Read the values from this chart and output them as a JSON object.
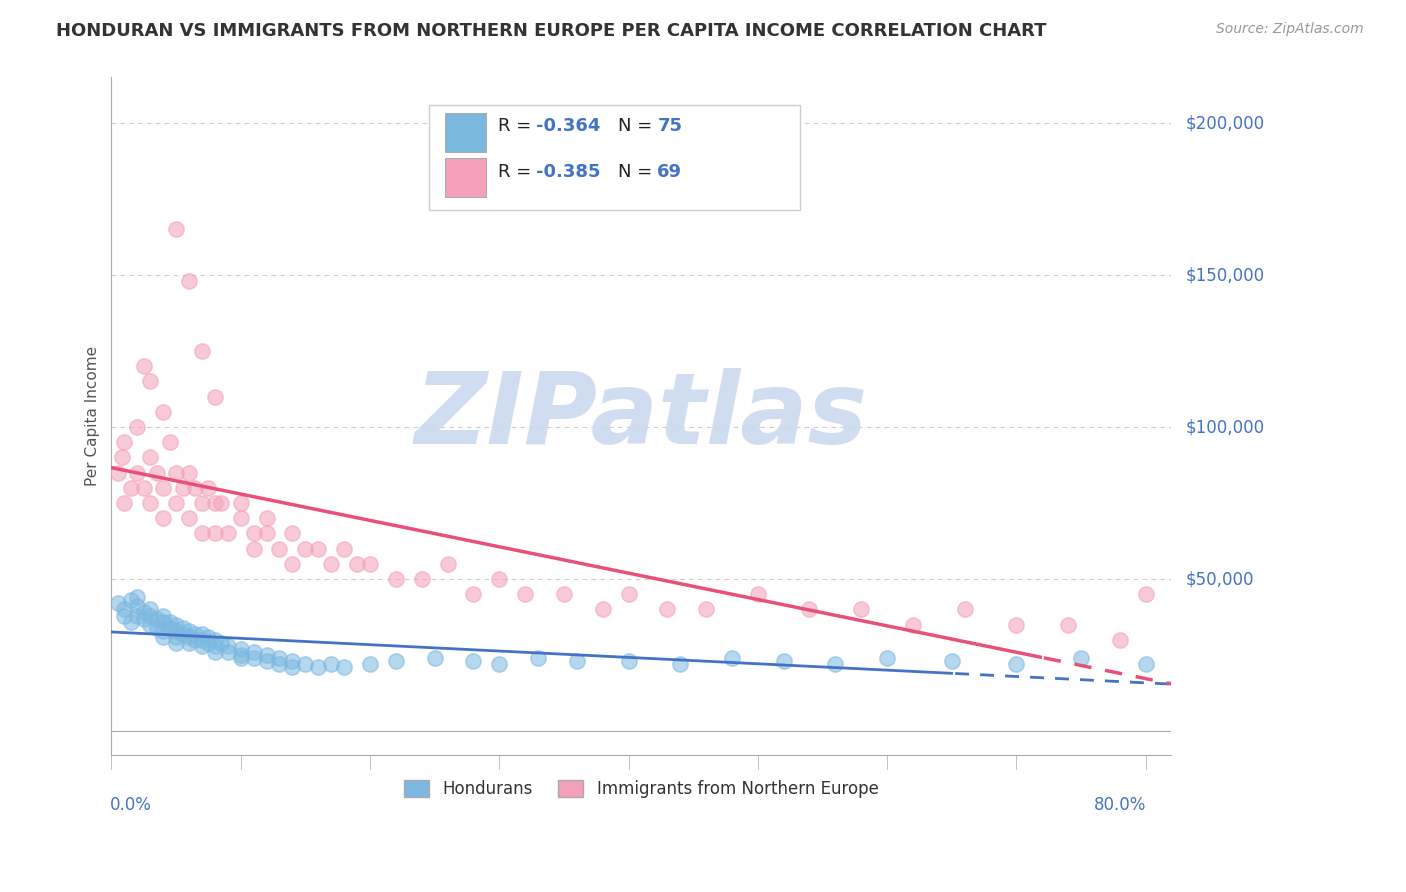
{
  "title": "HONDURAN VS IMMIGRANTS FROM NORTHERN EUROPE PER CAPITA INCOME CORRELATION CHART",
  "source": "Source: ZipAtlas.com",
  "ylabel": "Per Capita Income",
  "y_ticks": [
    0,
    50000,
    100000,
    150000,
    200000
  ],
  "y_tick_labels": [
    "",
    "$50,000",
    "$100,000",
    "$150,000",
    "$200,000"
  ],
  "x_range": [
    0.0,
    0.82
  ],
  "y_range": [
    -8000,
    215000
  ],
  "blue_R": -0.364,
  "blue_N": 75,
  "pink_R": -0.385,
  "pink_N": 69,
  "blue_color": "#7BB8E0",
  "pink_color": "#F4A0B8",
  "blue_line_color": "#4472C4",
  "pink_line_color": "#E8507A",
  "title_color": "#333333",
  "source_color": "#999999",
  "axis_label_color": "#4472C4",
  "legend_label_blue": "Hondurans",
  "legend_label_pink": "Immigrants from Northern Europe",
  "watermark_text": "ZIPatlas",
  "background_color": "#FFFFFF",
  "grid_color": "#CCCCCC",
  "blue_scatter_x": [
    0.005,
    0.01,
    0.01,
    0.015,
    0.015,
    0.02,
    0.02,
    0.02,
    0.025,
    0.025,
    0.03,
    0.03,
    0.03,
    0.035,
    0.035,
    0.04,
    0.04,
    0.04,
    0.04,
    0.045,
    0.045,
    0.05,
    0.05,
    0.05,
    0.05,
    0.055,
    0.055,
    0.06,
    0.06,
    0.06,
    0.065,
    0.065,
    0.07,
    0.07,
    0.07,
    0.075,
    0.075,
    0.08,
    0.08,
    0.08,
    0.085,
    0.09,
    0.09,
    0.1,
    0.1,
    0.1,
    0.11,
    0.11,
    0.12,
    0.12,
    0.13,
    0.13,
    0.14,
    0.14,
    0.15,
    0.16,
    0.17,
    0.18,
    0.2,
    0.22,
    0.25,
    0.28,
    0.3,
    0.33,
    0.36,
    0.4,
    0.44,
    0.48,
    0.52,
    0.56,
    0.6,
    0.65,
    0.7,
    0.75,
    0.8
  ],
  "blue_scatter_y": [
    42000,
    40000,
    38000,
    43000,
    36000,
    44000,
    41000,
    38000,
    39000,
    37000,
    40000,
    38000,
    35000,
    37000,
    34000,
    38000,
    36000,
    33000,
    31000,
    36000,
    34000,
    35000,
    33000,
    31000,
    29000,
    34000,
    32000,
    33000,
    31000,
    29000,
    32000,
    30000,
    32000,
    30000,
    28000,
    31000,
    29000,
    30000,
    28000,
    26000,
    29000,
    28000,
    26000,
    27000,
    25000,
    24000,
    26000,
    24000,
    25000,
    23000,
    24000,
    22000,
    23000,
    21000,
    22000,
    21000,
    22000,
    21000,
    22000,
    23000,
    24000,
    23000,
    22000,
    24000,
    23000,
    23000,
    22000,
    24000,
    23000,
    22000,
    24000,
    23000,
    22000,
    24000,
    22000
  ],
  "pink_scatter_x": [
    0.005,
    0.008,
    0.01,
    0.01,
    0.015,
    0.02,
    0.02,
    0.025,
    0.03,
    0.03,
    0.035,
    0.04,
    0.04,
    0.045,
    0.05,
    0.05,
    0.055,
    0.06,
    0.06,
    0.065,
    0.07,
    0.07,
    0.075,
    0.08,
    0.08,
    0.085,
    0.09,
    0.1,
    0.1,
    0.11,
    0.11,
    0.12,
    0.12,
    0.13,
    0.14,
    0.14,
    0.15,
    0.16,
    0.17,
    0.18,
    0.19,
    0.2,
    0.22,
    0.24,
    0.26,
    0.28,
    0.3,
    0.32,
    0.35,
    0.38,
    0.4,
    0.43,
    0.46,
    0.5,
    0.54,
    0.58,
    0.62,
    0.66,
    0.7,
    0.74,
    0.78,
    0.8,
    0.025,
    0.03,
    0.04,
    0.05,
    0.06,
    0.07,
    0.08
  ],
  "pink_scatter_y": [
    85000,
    90000,
    95000,
    75000,
    80000,
    100000,
    85000,
    80000,
    90000,
    75000,
    85000,
    80000,
    70000,
    95000,
    85000,
    75000,
    80000,
    85000,
    70000,
    80000,
    75000,
    65000,
    80000,
    75000,
    65000,
    75000,
    65000,
    75000,
    70000,
    65000,
    60000,
    70000,
    65000,
    60000,
    65000,
    55000,
    60000,
    60000,
    55000,
    60000,
    55000,
    55000,
    50000,
    50000,
    55000,
    45000,
    50000,
    45000,
    45000,
    40000,
    45000,
    40000,
    40000,
    45000,
    40000,
    40000,
    35000,
    40000,
    35000,
    35000,
    30000,
    45000,
    120000,
    115000,
    105000,
    165000,
    148000,
    125000,
    110000
  ]
}
